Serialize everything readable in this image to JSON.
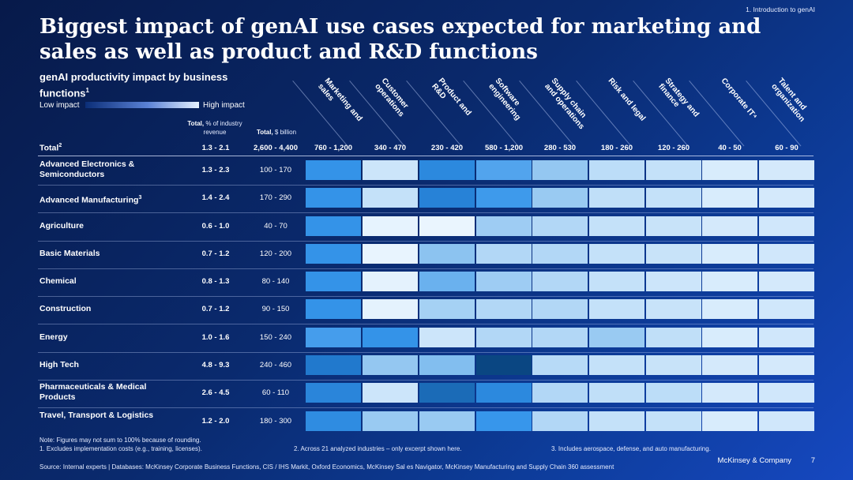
{
  "header": {
    "section": "1. Introduction to genAI",
    "title": "Biggest impact of genAI use cases expected for marketing and sales as well as product and R&D functions"
  },
  "legend": {
    "subtitle": "genAI productivity impact by business functions",
    "subtitle_sup": "1",
    "low": "Low impact",
    "high": "High impact"
  },
  "columns": {
    "revenue_bold": "Total,",
    "revenue_rest": " % of industry revenue",
    "billion_bold": "Total,",
    "billion_rest": " $ billion"
  },
  "chart_data": {
    "type": "heatmap",
    "title": "genAI productivity impact by business functions",
    "functions": [
      "Marketing and\nsales",
      "Customer\noperations",
      "Product and\nR&D",
      "Software\nengineering",
      "Supply chain\nand operations",
      "Risk and legal",
      "Strategy and\nfinance",
      "Corporate IT⁴",
      "Talent and\norganization"
    ],
    "total_row": {
      "label": "Total",
      "sup": "2",
      "revenue_pct": "1.3 - 2.1",
      "billion": "2,600 - 4,400",
      "function_totals": [
        "760 - 1,200",
        "340 - 470",
        "230 - 420",
        "580 - 1,200",
        "280 - 530",
        "180 - 260",
        "120 - 260",
        "40 - 50",
        "60 - 90"
      ]
    },
    "rows": [
      {
        "label": "Advanced Electronics & Semiconductors",
        "sup": "",
        "revenue_pct": "1.3 - 2.3",
        "billion": "100 - 170",
        "impact": [
          0.72,
          0.18,
          0.78,
          0.62,
          0.42,
          0.26,
          0.22,
          0.12,
          0.14
        ]
      },
      {
        "label": "Advanced Manufacturing",
        "sup": "3",
        "revenue_pct": "1.4 - 2.4",
        "billion": "170 - 290",
        "impact": [
          0.72,
          0.22,
          0.82,
          0.68,
          0.4,
          0.24,
          0.22,
          0.12,
          0.14
        ]
      },
      {
        "label": "Agriculture",
        "sup": "",
        "revenue_pct": "0.6 - 1.0",
        "billion": "40 - 70",
        "impact": [
          0.72,
          0.05,
          0.03,
          0.38,
          0.3,
          0.22,
          0.2,
          0.14,
          0.16
        ]
      },
      {
        "label": "Basic Materials",
        "sup": "",
        "revenue_pct": "0.7 - 1.2",
        "billion": "120 - 200",
        "impact": [
          0.72,
          0.04,
          0.45,
          0.3,
          0.3,
          0.22,
          0.2,
          0.12,
          0.16
        ]
      },
      {
        "label": "Chemical",
        "sup": "",
        "revenue_pct": "0.8 - 1.3",
        "billion": "80 - 140",
        "impact": [
          0.72,
          0.06,
          0.55,
          0.38,
          0.3,
          0.22,
          0.18,
          0.12,
          0.14
        ]
      },
      {
        "label": "Construction",
        "sup": "",
        "revenue_pct": "0.7 - 1.2",
        "billion": "90 - 150",
        "impact": [
          0.72,
          0.06,
          0.35,
          0.3,
          0.3,
          0.22,
          0.2,
          0.12,
          0.16
        ]
      },
      {
        "label": "Energy",
        "sup": "",
        "revenue_pct": "1.0 - 1.6",
        "billion": "150 - 240",
        "impact": [
          0.66,
          0.72,
          0.18,
          0.3,
          0.3,
          0.4,
          0.24,
          0.12,
          0.16
        ]
      },
      {
        "label": "High Tech",
        "sup": "",
        "revenue_pct": "4.8 - 9.3",
        "billion": "240 - 460",
        "impact": [
          0.86,
          0.42,
          0.48,
          1.0,
          0.28,
          0.22,
          0.2,
          0.14,
          0.14
        ]
      },
      {
        "label": "Pharmaceuticals & Medical Products",
        "sup": "",
        "revenue_pct": "2.6 - 4.5",
        "billion": "60 - 110",
        "impact": [
          0.8,
          0.18,
          0.9,
          0.78,
          0.3,
          0.24,
          0.26,
          0.14,
          0.16
        ]
      },
      {
        "label": "Travel, Transport & Logistics",
        "sup": "",
        "revenue_pct": "1.2 - 2.0",
        "billion": "180 - 300",
        "impact": [
          0.76,
          0.4,
          0.4,
          0.7,
          0.3,
          0.22,
          0.22,
          0.12,
          0.16
        ]
      }
    ]
  },
  "notes": {
    "note0": "Note: Figures may not sum to 100% because of rounding.",
    "note1": "1.    Excludes implementation costs (e.g., training, licenses).",
    "note2": "2. Across 21 analyzed industries – only excerpt shown here.",
    "note3": "3. Includes aerospace, defense, and auto manufacturing.",
    "source": "Source: Internal experts | Databases: McKinsey Corporate Business Functions, CIS / IHS Markit, Oxford Economics, McKinsey Sal  es Navigator, McKinsey Manufacturing and Supply Chain 360 assessment"
  },
  "footer": {
    "brand": "McKinsey & Company",
    "page": "7"
  }
}
